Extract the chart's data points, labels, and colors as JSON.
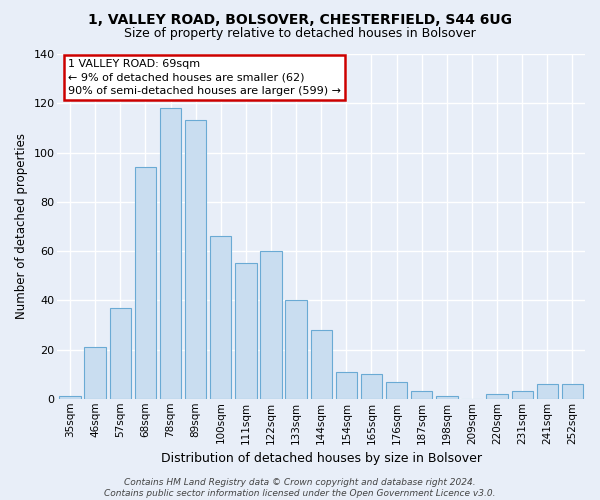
{
  "title_line1": "1, VALLEY ROAD, BOLSOVER, CHESTERFIELD, S44 6UG",
  "title_line2": "Size of property relative to detached houses in Bolsover",
  "xlabel": "Distribution of detached houses by size in Bolsover",
  "ylabel": "Number of detached properties",
  "bar_color": "#c9ddf0",
  "bar_edge_color": "#6aaad4",
  "categories": [
    "35sqm",
    "46sqm",
    "57sqm",
    "68sqm",
    "78sqm",
    "89sqm",
    "100sqm",
    "111sqm",
    "122sqm",
    "133sqm",
    "144sqm",
    "154sqm",
    "165sqm",
    "176sqm",
    "187sqm",
    "198sqm",
    "209sqm",
    "220sqm",
    "231sqm",
    "241sqm",
    "252sqm"
  ],
  "values": [
    1,
    21,
    37,
    94,
    118,
    113,
    66,
    55,
    60,
    40,
    28,
    11,
    10,
    7,
    3,
    1,
    0,
    2,
    3,
    6,
    6
  ],
  "ylim": [
    0,
    140
  ],
  "yticks": [
    0,
    20,
    40,
    60,
    80,
    100,
    120,
    140
  ],
  "annotation_text": "1 VALLEY ROAD: 69sqm\n← 9% of detached houses are smaller (62)\n90% of semi-detached houses are larger (599) →",
  "annotation_box_facecolor": "white",
  "annotation_box_edgecolor": "#cc0000",
  "footer_text": "Contains HM Land Registry data © Crown copyright and database right 2024.\nContains public sector information licensed under the Open Government Licence v3.0.",
  "background_color": "#e8eef8",
  "grid_color": "white"
}
